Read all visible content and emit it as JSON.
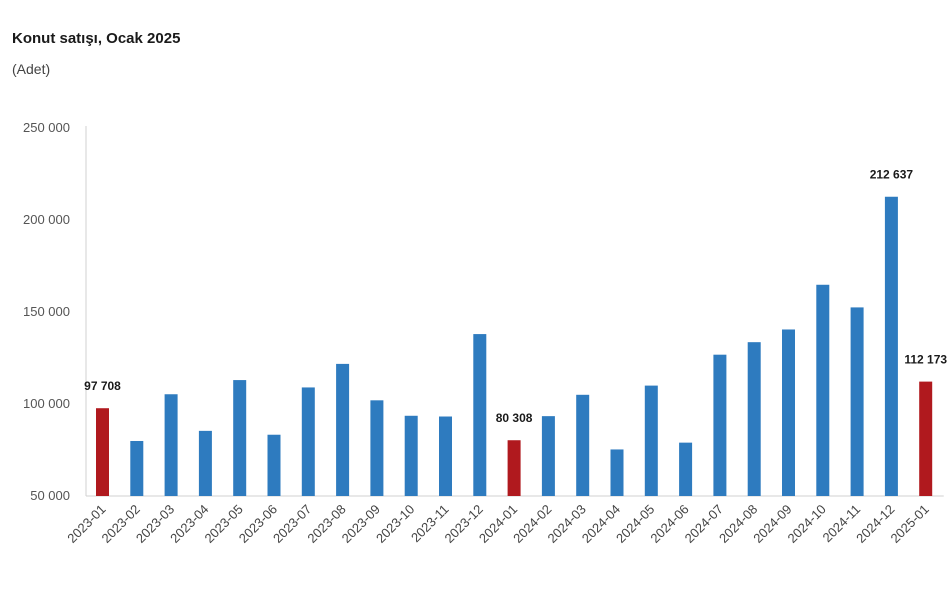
{
  "chart_data": {
    "type": "bar",
    "title": "Konut satışı, Ocak 2025",
    "subtitle": "(Adet)",
    "categories": [
      "2023-01",
      "2023-02",
      "2023-03",
      "2023-04",
      "2023-05",
      "2023-06",
      "2023-07",
      "2023-08",
      "2023-09",
      "2023-10",
      "2023-11",
      "2023-12",
      "2024-01",
      "2024-02",
      "2024-03",
      "2024-04",
      "2024-05",
      "2024-06",
      "2024-07",
      "2024-08",
      "2024-09",
      "2024-10",
      "2024-11",
      "2024-12",
      "2025-01"
    ],
    "values": [
      97708,
      79900,
      105300,
      85400,
      113000,
      83300,
      109000,
      121800,
      102000,
      93600,
      93200,
      138000,
      80308,
      93400,
      105000,
      75300,
      110000,
      79000,
      126800,
      133600,
      140500,
      164800,
      152500,
      212637,
      112173
    ],
    "highlighted": [
      "2023-01",
      "2024-01",
      "2025-01"
    ],
    "data_labels": [
      {
        "category": "2023-01",
        "text": "97 708"
      },
      {
        "category": "2024-01",
        "text": "80 308"
      },
      {
        "category": "2024-12",
        "text": "212 637"
      },
      {
        "category": "2025-01",
        "text": "112 173"
      }
    ],
    "ylim": [
      50000,
      250000
    ],
    "yticks": [
      50000,
      100000,
      150000,
      200000,
      250000
    ],
    "ytick_labels": [
      "50 000",
      "100 000",
      "150 000",
      "200 000",
      "250 000"
    ],
    "xlabel": "",
    "ylabel": "",
    "grid": false,
    "legend": "none",
    "colors": {
      "default": "#2e7bbf",
      "highlight": "#b0191e",
      "axis": "#d0d0d0"
    }
  }
}
